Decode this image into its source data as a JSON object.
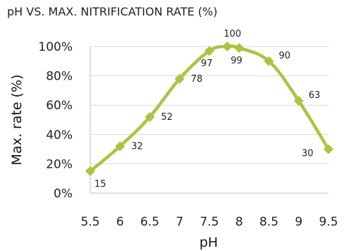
{
  "chart_data": {
    "type": "line",
    "title": "pH VS. MAX. NITRIFICATION RATE (%)",
    "xlabel": "pH",
    "ylabel": "Max. rate (%)",
    "x": [
      5.5,
      6,
      6.5,
      7,
      7.5,
      7.8,
      8,
      8.5,
      9,
      9.5
    ],
    "series": [
      {
        "values": [
          15,
          32,
          52,
          78,
          97,
          100,
          99,
          90,
          63,
          30
        ]
      }
    ],
    "data_labels": [
      "15",
      "32",
      "52",
      "78",
      "97",
      "100",
      "99",
      "90",
      "63",
      "30"
    ],
    "xticks": [
      5.5,
      6,
      6.5,
      7,
      7.5,
      8,
      8.5,
      9,
      9.5
    ],
    "xtick_labels": [
      "5.5",
      "6",
      "6.5",
      "7",
      "7.5",
      "8",
      "8.5",
      "9",
      "9.5"
    ],
    "yticks": [
      0,
      20,
      40,
      60,
      80,
      100
    ],
    "ytick_labels": [
      "0%",
      "20%",
      "40%",
      "60%",
      "80%",
      "100%"
    ],
    "xlim": [
      5.5,
      9.5
    ],
    "ylim": [
      0,
      100
    ],
    "grid": "horizontal",
    "legend": "none",
    "line_color": "#a8c63e"
  }
}
